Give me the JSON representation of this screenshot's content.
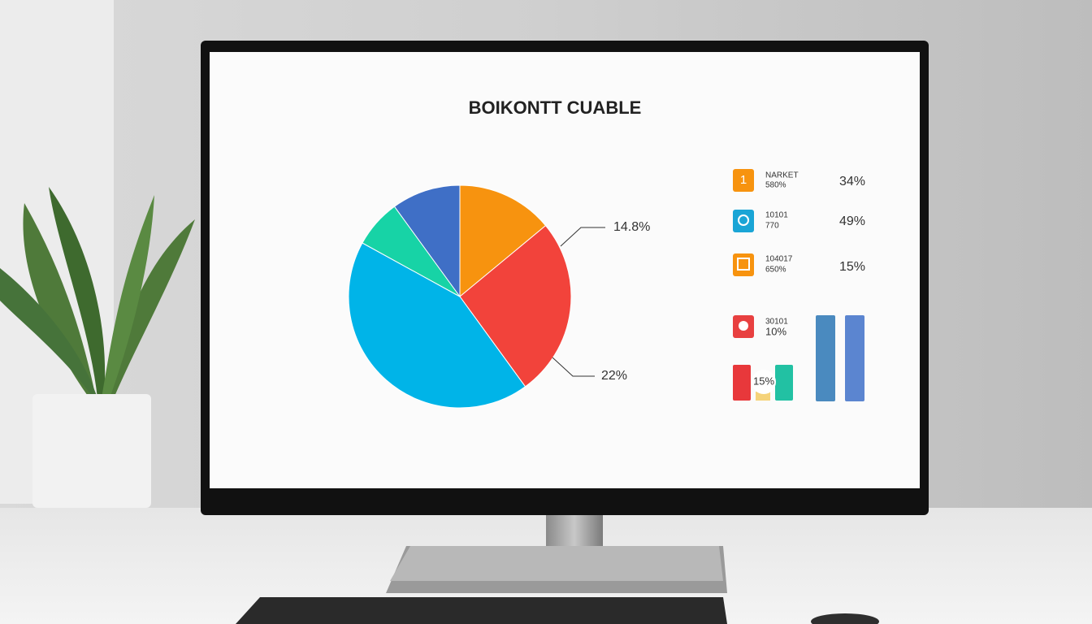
{
  "chart_data": {
    "type": "pie",
    "title": "BOIKONTT CUABLE",
    "values": [
      14,
      26,
      43,
      7,
      10
    ],
    "colors": [
      "#f7930f",
      "#f2433b",
      "#00b4e8",
      "#17d3a6",
      "#3f6fc6"
    ],
    "annotations": [
      "14.8%",
      "22%"
    ]
  },
  "side_panel": {
    "items": [
      {
        "icon": "1",
        "label": "NARKET",
        "sublabel": "580%",
        "value": "34%"
      },
      {
        "label": "10101",
        "sublabel": "770",
        "value": "49%"
      },
      {
        "label": "104017",
        "sublabel": "650%",
        "value": "15%"
      },
      {
        "label": "30101",
        "sublabel": "10%"
      }
    ],
    "bar_label": "15%"
  }
}
